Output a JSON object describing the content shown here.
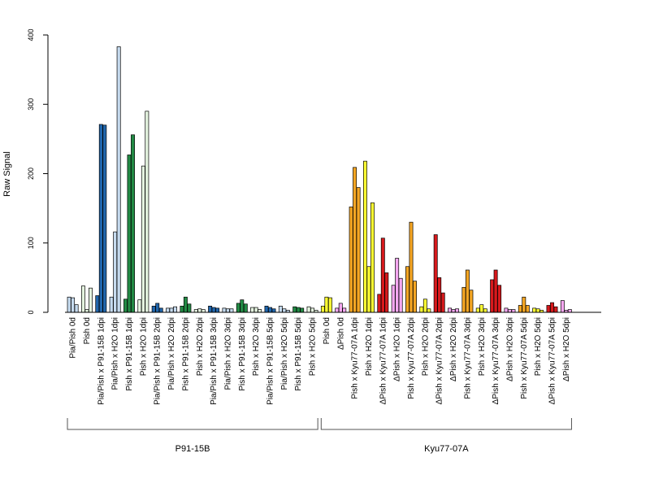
{
  "chart_data": {
    "type": "bar",
    "ylabel": "Raw Signal",
    "ylim": [
      0,
      400
    ],
    "yticks": [
      0,
      100,
      200,
      300,
      400
    ],
    "grid": false,
    "groups": [
      {
        "label": "Pia/Pish 0d",
        "values": [
          22,
          21,
          11
        ],
        "colors": [
          "#c6dbef",
          "#c6dbef",
          "#c6dbef"
        ]
      },
      {
        "label": "Pish 0d",
        "values": [
          38,
          4,
          35
        ],
        "colors": [
          "#e5f5e0",
          "#e5f5e0",
          "#e5f5e0"
        ]
      },
      {
        "label": "Pia/Pish x P91-15B 1dpi",
        "values": [
          24,
          271,
          270
        ],
        "colors": [
          "#2166ac",
          "#2166ac",
          "#2166ac"
        ]
      },
      {
        "label": "Pia/Pish x H2O 1dpi",
        "values": [
          22,
          116,
          383
        ],
        "colors": [
          "#c6dbef",
          "#c6dbef",
          "#c6dbef"
        ]
      },
      {
        "label": "Pish x P91-15B 1dpi",
        "values": [
          19,
          227,
          256
        ],
        "colors": [
          "#238b45",
          "#238b45",
          "#238b45"
        ]
      },
      {
        "label": "Pish x H2O 1dpi",
        "values": [
          18,
          211,
          290
        ],
        "colors": [
          "#e5f5e0",
          "#e5f5e0",
          "#e5f5e0"
        ]
      },
      {
        "label": "Pia/Pish x P91-15B 2dpi",
        "values": [
          9,
          13,
          6
        ],
        "colors": [
          "#2166ac",
          "#2166ac",
          "#2166ac"
        ]
      },
      {
        "label": "Pia/Pish x H2O 2dpi",
        "values": [
          6,
          6,
          8
        ],
        "colors": [
          "#c6dbef",
          "#c6dbef",
          "#c6dbef"
        ]
      },
      {
        "label": "Pish x P91-15B 2dpi",
        "values": [
          9,
          22,
          12
        ],
        "colors": [
          "#238b45",
          "#238b45",
          "#238b45"
        ]
      },
      {
        "label": "Pish x H2O 2dpi",
        "values": [
          4,
          5,
          4
        ],
        "colors": [
          "#e5f5e0",
          "#e5f5e0",
          "#e5f5e0"
        ]
      },
      {
        "label": "Pia/Pish x P91-15B 3dpi",
        "values": [
          9,
          7,
          6
        ],
        "colors": [
          "#2166ac",
          "#2166ac",
          "#2166ac"
        ]
      },
      {
        "label": "Pia/Pish x H2O 3dpi",
        "values": [
          6,
          5,
          5
        ],
        "colors": [
          "#c6dbef",
          "#c6dbef",
          "#c6dbef"
        ]
      },
      {
        "label": "Pish x P91-15B 3dpi",
        "values": [
          13,
          18,
          12
        ],
        "colors": [
          "#238b45",
          "#238b45",
          "#238b45"
        ]
      },
      {
        "label": "Pish x H2O 3dpi",
        "values": [
          7,
          7,
          4
        ],
        "colors": [
          "#e5f5e0",
          "#e5f5e0",
          "#e5f5e0"
        ]
      },
      {
        "label": "Pia/Pish x P91-15B 5dpi",
        "values": [
          9,
          7,
          5
        ],
        "colors": [
          "#2166ac",
          "#2166ac",
          "#2166ac"
        ]
      },
      {
        "label": "Pia/Pish x H2O 5dpi",
        "values": [
          9,
          5,
          3
        ],
        "colors": [
          "#c6dbef",
          "#c6dbef",
          "#c6dbef"
        ]
      },
      {
        "label": "Pish x P91-15B 5dpi",
        "values": [
          8,
          7,
          6
        ],
        "colors": [
          "#238b45",
          "#238b45",
          "#238b45"
        ]
      },
      {
        "label": "Pish x H2O 5dpi",
        "values": [
          8,
          6,
          3
        ],
        "colors": [
          "#e5f5e0",
          "#e5f5e0",
          "#e5f5e0"
        ]
      },
      {
        "label": "Pish 0d",
        "values": [
          9,
          22,
          21
        ],
        "colors": [
          "#ffff33",
          "#ffff33",
          "#ffff33"
        ]
      },
      {
        "label": "ΔPish 0d",
        "values": [
          6,
          13,
          6
        ],
        "colors": [
          "#f4a7f0",
          "#f4a7f0",
          "#f4a7f0"
        ]
      },
      {
        "label": "Pish x Kyu77-07A 1dpi",
        "values": [
          152,
          209,
          180
        ],
        "colors": [
          "#f5a623",
          "#f5a623",
          "#f5a623"
        ]
      },
      {
        "label": "Pish x H2O 1dpi",
        "values": [
          218,
          66,
          158
        ],
        "colors": [
          "#ffff33",
          "#ffff33",
          "#ffff33"
        ]
      },
      {
        "label": "ΔPish x Kyu77-07A 1dpi",
        "values": [
          26,
          107,
          57
        ],
        "colors": [
          "#d7191c",
          "#d7191c",
          "#d7191c"
        ]
      },
      {
        "label": "ΔPish x H2O 1dpi",
        "values": [
          39,
          78,
          49
        ],
        "colors": [
          "#f4a7f0",
          "#f4a7f0",
          "#f4a7f0"
        ]
      },
      {
        "label": "Pish x Kyu77-07A 2dpi",
        "values": [
          66,
          130,
          45
        ],
        "colors": [
          "#f5a623",
          "#f5a623",
          "#f5a623"
        ]
      },
      {
        "label": "Pish x H2O 2dpi",
        "values": [
          8,
          19,
          5
        ],
        "colors": [
          "#ffff33",
          "#ffff33",
          "#ffff33"
        ]
      },
      {
        "label": "ΔPish x Kyu77-07A 2dpi",
        "values": [
          112,
          50,
          28
        ],
        "colors": [
          "#d7191c",
          "#d7191c",
          "#d7191c"
        ]
      },
      {
        "label": "ΔPish x H2O 2dpi",
        "values": [
          6,
          4,
          5
        ],
        "colors": [
          "#f4a7f0",
          "#f4a7f0",
          "#f4a7f0"
        ]
      },
      {
        "label": "Pish x Kyu77-07A 3dpi",
        "values": [
          36,
          61,
          32
        ],
        "colors": [
          "#f5a623",
          "#f5a623",
          "#f5a623"
        ]
      },
      {
        "label": "Pish x H2O 3dpi",
        "values": [
          6,
          11,
          5
        ],
        "colors": [
          "#ffff33",
          "#ffff33",
          "#ffff33"
        ]
      },
      {
        "label": "ΔPish x Kyu77-07A 3dpi",
        "values": [
          47,
          61,
          39
        ],
        "colors": [
          "#d7191c",
          "#d7191c",
          "#d7191c"
        ]
      },
      {
        "label": "ΔPish x H2O 3dpi",
        "values": [
          6,
          4,
          4
        ],
        "colors": [
          "#f4a7f0",
          "#f4a7f0",
          "#f4a7f0"
        ]
      },
      {
        "label": "Pish x Kyu77-07A 5dpi",
        "values": [
          10,
          22,
          10
        ],
        "colors": [
          "#f5a623",
          "#f5a623",
          "#f5a623"
        ]
      },
      {
        "label": "Pish x H2O 5dpi",
        "values": [
          6,
          5,
          3
        ],
        "colors": [
          "#ffff33",
          "#ffff33",
          "#ffff33"
        ]
      },
      {
        "label": "ΔPish x Kyu77-07A 5dpi",
        "values": [
          10,
          14,
          8
        ],
        "colors": [
          "#d7191c",
          "#d7191c",
          "#d7191c"
        ]
      },
      {
        "label": "ΔPish x H2O 5dpi",
        "values": [
          17,
          3,
          4
        ],
        "colors": [
          "#f4a7f0",
          "#f4a7f0",
          "#f4a7f0"
        ]
      }
    ],
    "sections": [
      {
        "label": "P91-15B",
        "first_group": 0,
        "last_group": 17
      },
      {
        "label": "Kyu77-07A",
        "first_group": 18,
        "last_group": 35
      }
    ]
  }
}
